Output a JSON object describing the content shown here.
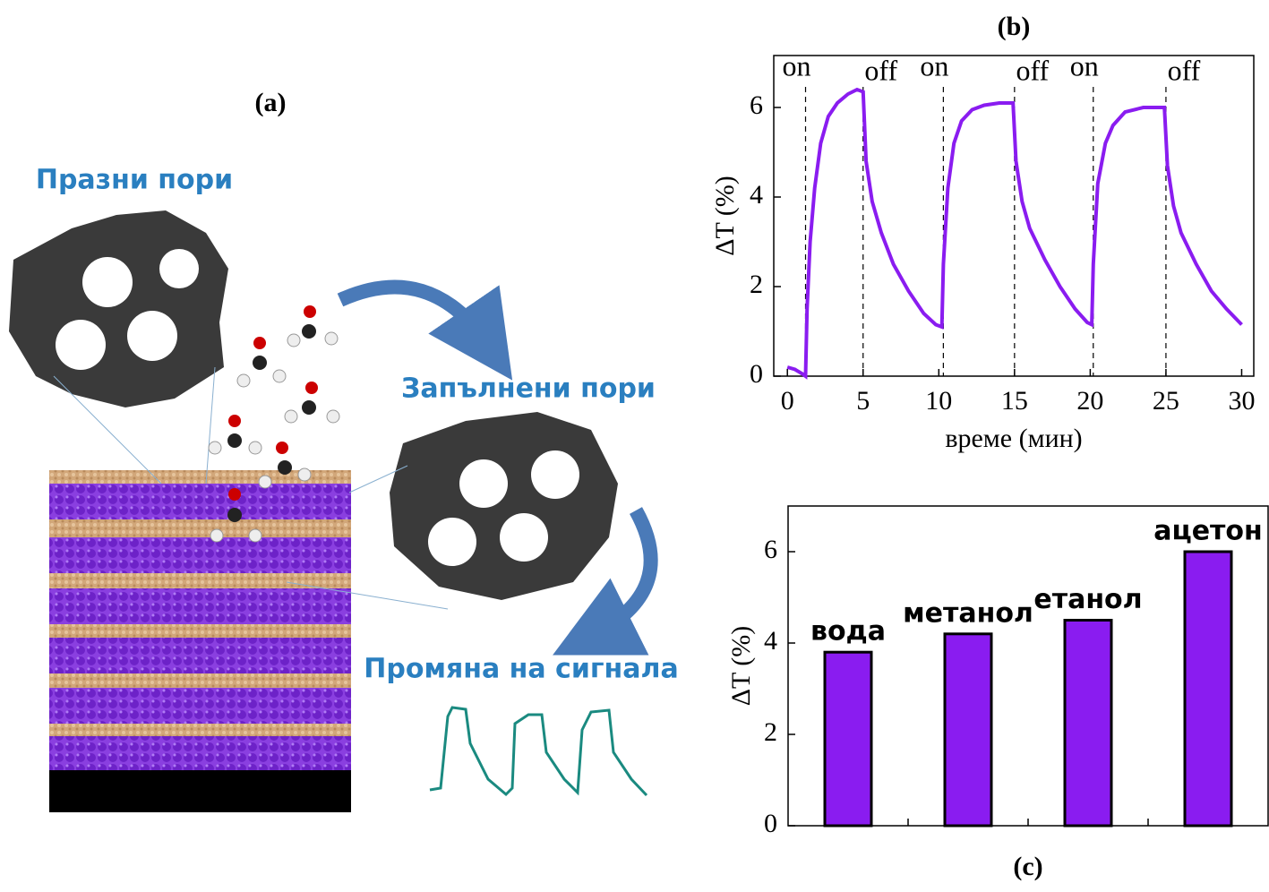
{
  "diagram": {
    "label": "(a)",
    "empty_pores": "Празни пори",
    "filled_pores": "Запълнени пори",
    "signal_change": "Промяна на сигнала"
  },
  "chart_data": [
    {
      "type": "line",
      "title": "(b)",
      "x_label": "време (мин)",
      "y_label": "ΔT (%)",
      "xlim": [
        -0.9,
        30.8
      ],
      "ylim": [
        0,
        7.16
      ],
      "xticks": [
        0,
        5,
        10,
        15,
        20,
        25,
        30
      ],
      "yticks": [
        0,
        2,
        4,
        6
      ],
      "color": "#8a1cf0",
      "annotations": [
        {
          "text": "on",
          "x": 1.2
        },
        {
          "text": "off",
          "x": 5
        },
        {
          "text": "on",
          "x": 10.3
        },
        {
          "text": "off",
          "x": 15
        },
        {
          "text": "on",
          "x": 20.2
        },
        {
          "text": "off",
          "x": 25
        }
      ],
      "x": [
        0,
        0.5,
        1.0,
        1.2,
        1.3,
        1.5,
        1.8,
        2.2,
        2.7,
        3.3,
        4,
        4.6,
        5,
        5.2,
        5.6,
        6.2,
        7,
        8,
        9,
        9.8,
        10.2,
        10.3,
        10.6,
        11,
        11.5,
        12.2,
        13,
        14,
        14.9,
        15.1,
        15.5,
        16,
        17,
        18,
        19,
        19.8,
        20.1,
        20.2,
        20.5,
        21,
        21.5,
        22.3,
        23.5,
        24.9,
        25.1,
        25.5,
        26,
        27,
        28,
        29,
        30
      ],
      "values": [
        0.2,
        0.15,
        0.05,
        0,
        1.5,
        3.0,
        4.2,
        5.2,
        5.8,
        6.1,
        6.3,
        6.4,
        6.35,
        4.8,
        3.9,
        3.2,
        2.5,
        1.9,
        1.4,
        1.15,
        1.1,
        2.5,
        4.2,
        5.2,
        5.7,
        5.95,
        6.05,
        6.1,
        6.1,
        4.8,
        3.9,
        3.3,
        2.6,
        2.0,
        1.5,
        1.2,
        1.15,
        2.5,
        4.3,
        5.2,
        5.6,
        5.9,
        6.0,
        6.0,
        4.7,
        3.8,
        3.2,
        2.5,
        1.9,
        1.5,
        1.15
      ]
    },
    {
      "type": "bar",
      "title": "(c)",
      "y_label": "ΔT (%)",
      "ylim": [
        0,
        7
      ],
      "yticks": [
        0,
        2,
        4,
        6
      ],
      "color": "#8a1cf0",
      "categories": [
        "вода",
        "метанол",
        "етанол",
        "ацетон"
      ],
      "values": [
        3.8,
        4.2,
        4.5,
        6.0
      ]
    }
  ]
}
